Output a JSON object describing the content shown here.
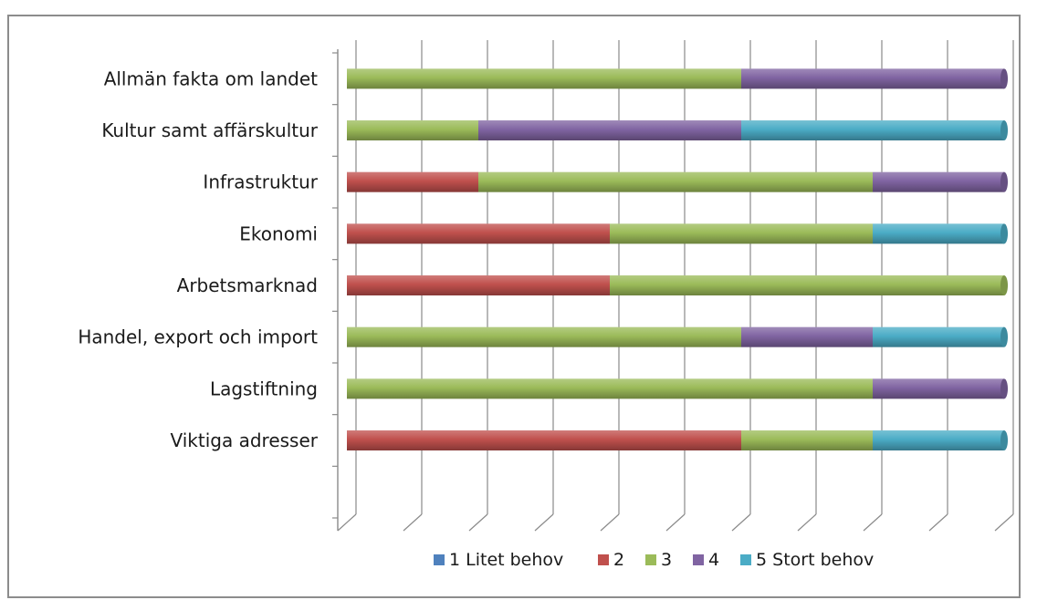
{
  "chart_data": {
    "type": "bar",
    "orientation": "horizontal",
    "stacked": true,
    "style": "3d-cylinder",
    "categories": [
      "Allmän fakta om landet",
      "Kultur samt affärskultur",
      "Infrastruktur",
      "Ekonomi",
      "Arbetsmarknad",
      "Handel, export och import",
      "Lagstiftning",
      "Viktiga adresser"
    ],
    "series": [
      {
        "name": "1 Litet behov",
        "color": "#4f81bd",
        "values": [
          0,
          0,
          0,
          0,
          0,
          0,
          0,
          0
        ]
      },
      {
        "name": "2",
        "color": "#c0504d",
        "values": [
          0,
          0,
          1,
          2,
          2,
          0,
          0,
          3
        ]
      },
      {
        "name": "3",
        "color": "#9bbb59",
        "values": [
          3,
          1,
          3,
          2,
          3,
          3,
          4,
          1
        ]
      },
      {
        "name": "4",
        "color": "#8064a2",
        "values": [
          2,
          2,
          1,
          0,
          0,
          1,
          1,
          0
        ]
      },
      {
        "name": "5 Stort behov",
        "color": "#4bacc6",
        "values": [
          0,
          2,
          0,
          1,
          0,
          1,
          0,
          1
        ]
      }
    ],
    "xlim": [
      0,
      5
    ],
    "x_gridlines": 10,
    "grid": true,
    "legend_position": "bottom",
    "title": "",
    "xlabel": "",
    "ylabel": ""
  }
}
